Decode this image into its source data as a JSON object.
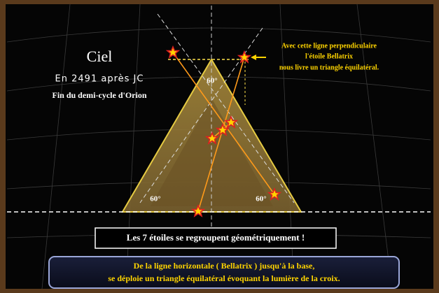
{
  "title": "Ciel",
  "subtitle": "En 2491 après JC",
  "caption": "Fin du demi-cycle d'Orion",
  "annotation": [
    "Avec cette  ligne perpendiculaire",
    "l'étoile Bellatrix",
    "nous livre un triangle équilatéral."
  ],
  "angles": [
    "60°",
    "60°",
    "60°"
  ],
  "banner": "Les 7 étoiles  se regroupent géométriquement !",
  "footer": [
    "De la ligne horizontale ( Bellatrix ) jusqu'à la base,",
    "se déploie un triangle équilatéral évoquant la lumière de la croix."
  ]
}
